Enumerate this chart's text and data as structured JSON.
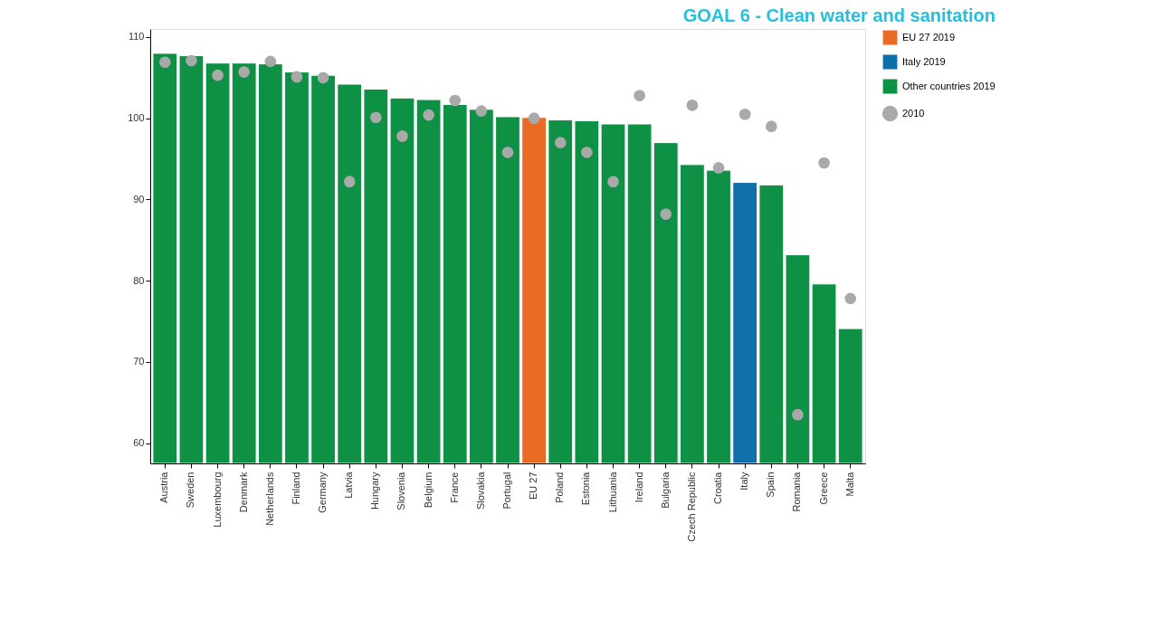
{
  "chart_data": {
    "type": "bar",
    "title": "GOAL 6 - Clean water and sanitation",
    "categories": [
      "Austria",
      "Sweden",
      "Luxembourg",
      "Denmark",
      "Netherlands",
      "Finland",
      "Germany",
      "Latvia",
      "Hungary",
      "Slovenia",
      "Belgium",
      "France",
      "Slovakia",
      "Portugal",
      "EU 27",
      "Poland",
      "Estonia",
      "Lithuania",
      "Ireland",
      "Bulgaria",
      "Czech Republic",
      "Croatia",
      "Italy",
      "Spain",
      "Romania",
      "Greece",
      "Malta"
    ],
    "series": [
      {
        "name": "EU 27 2019",
        "color": "#e96b24",
        "values": [
          null,
          null,
          null,
          null,
          null,
          null,
          null,
          null,
          null,
          null,
          null,
          null,
          null,
          null,
          100.1,
          null,
          null,
          null,
          null,
          null,
          null,
          null,
          null,
          null,
          null,
          null,
          null
        ]
      },
      {
        "name": "Italy 2019",
        "color": "#0f6fab",
        "values": [
          null,
          null,
          null,
          null,
          null,
          null,
          null,
          null,
          null,
          null,
          null,
          null,
          null,
          null,
          null,
          null,
          null,
          null,
          null,
          null,
          null,
          null,
          92.1,
          null,
          null,
          null,
          null
        ]
      },
      {
        "name": "Other countries 2019",
        "color": "#0f9145",
        "values": [
          108.0,
          107.7,
          106.8,
          106.8,
          106.7,
          105.7,
          105.3,
          104.2,
          103.6,
          102.5,
          102.3,
          101.7,
          101.1,
          100.2,
          null,
          99.8,
          99.7,
          99.3,
          99.3,
          97.0,
          94.3,
          93.6,
          null,
          91.8,
          83.2,
          79.6,
          74.1
        ]
      },
      {
        "name": "2010",
        "type": "scatter",
        "color": "#a9a9a9",
        "values": [
          106.9,
          107.1,
          105.3,
          105.7,
          107.0,
          105.1,
          105.0,
          92.2,
          100.1,
          97.8,
          100.4,
          102.2,
          100.9,
          95.8,
          100.0,
          97.0,
          95.8,
          92.2,
          102.8,
          88.2,
          101.6,
          93.9,
          100.5,
          99.0,
          63.5,
          94.5,
          77.8
        ]
      }
    ],
    "ylim": [
      57.5,
      111
    ],
    "yticks": [
      60,
      70,
      80,
      90,
      100,
      110
    ],
    "grid": false,
    "legend": "right",
    "marker": "circle"
  }
}
